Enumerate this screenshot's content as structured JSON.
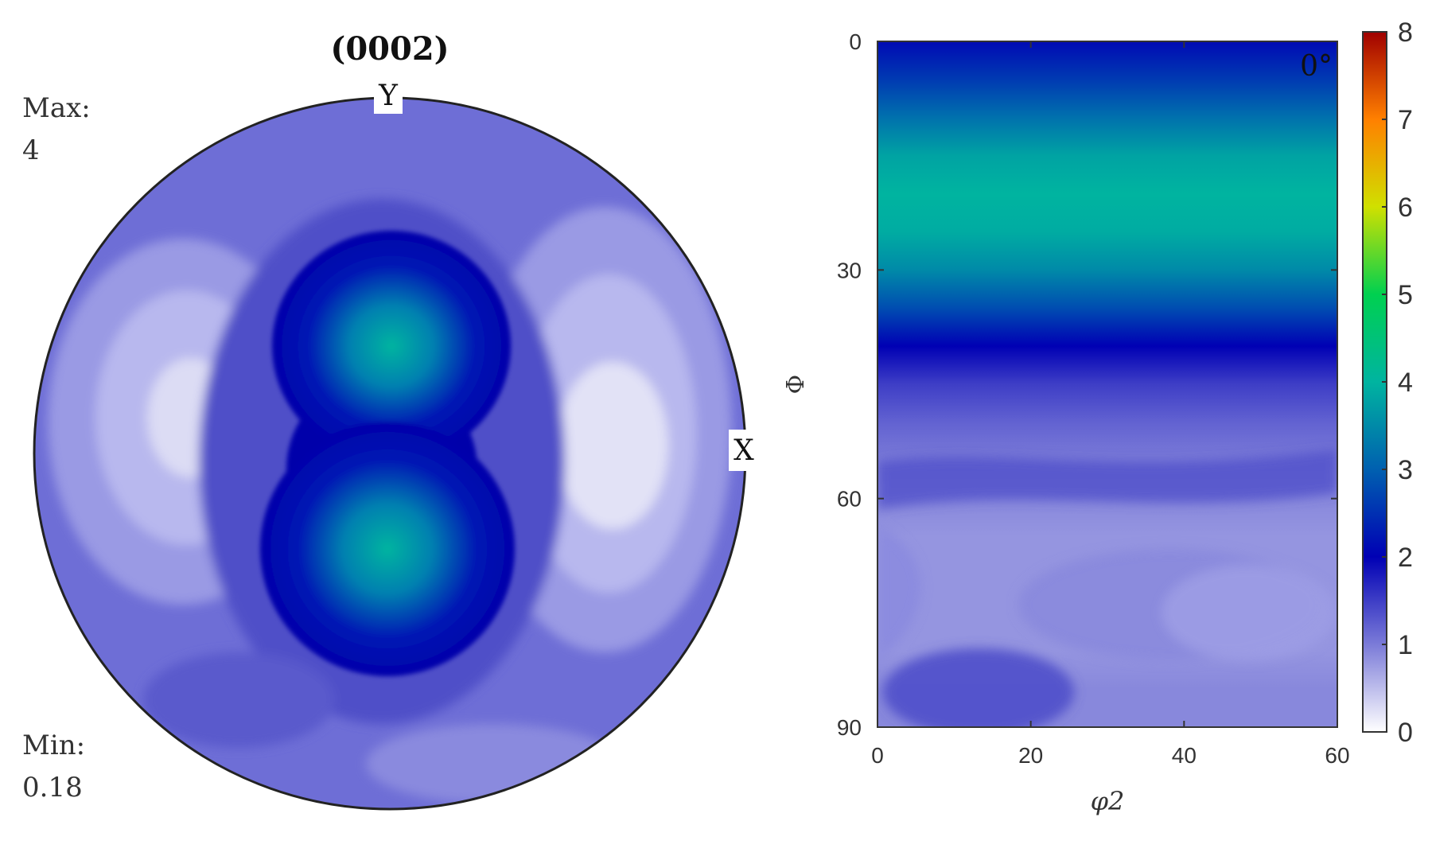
{
  "chart_data": [
    {
      "type": "heatmap",
      "subtype": "pole-figure",
      "title": "(0002)",
      "axis_labels": {
        "y_axis": "Y",
        "x_axis": "X"
      },
      "max_label": "Max:",
      "max_value": "4",
      "min_label": "Min:",
      "min_value": "0.18",
      "peaks": [
        {
          "name": "upper-central-peak",
          "value": 4
        },
        {
          "name": "lower-central-peak",
          "value": 4
        }
      ],
      "colors": {
        "low": "#dcdcf4",
        "mid": "#6b6bd4",
        "high": "#0000aa",
        "peak": "#00b4a0"
      }
    },
    {
      "type": "heatmap",
      "subtype": "ODF-section",
      "section_label": "0°",
      "xlabel": "φ2",
      "ylabel": "Φ",
      "xlim": [
        0,
        60
      ],
      "ylim": [
        0,
        90
      ],
      "x_ticks": [
        "0",
        "20",
        "40",
        "60"
      ],
      "y_ticks": [
        "0",
        "30",
        "60",
        "90"
      ],
      "profile_phi": [
        0,
        5,
        10,
        15,
        20,
        25,
        30,
        35,
        40,
        45,
        50,
        55,
        60,
        65,
        70,
        75,
        80,
        85,
        90
      ],
      "profile_intensity": [
        2.1,
        2.6,
        3.2,
        3.8,
        4.0,
        3.9,
        3.5,
        2.8,
        2.0,
        1.5,
        1.2,
        1.0,
        0.9,
        0.8,
        0.8,
        0.8,
        0.8,
        0.9,
        0.9
      ],
      "colorbar": {
        "min": 0,
        "max": 8,
        "ticks": [
          "0",
          "1",
          "2",
          "3",
          "4",
          "5",
          "6",
          "7",
          "8"
        ],
        "colors": [
          "#ffffff",
          "#7b7bd8",
          "#0000b4",
          "#0060b0",
          "#00b4a0",
          "#00d050",
          "#d0e000",
          "#ff8000",
          "#a00000"
        ]
      }
    }
  ]
}
